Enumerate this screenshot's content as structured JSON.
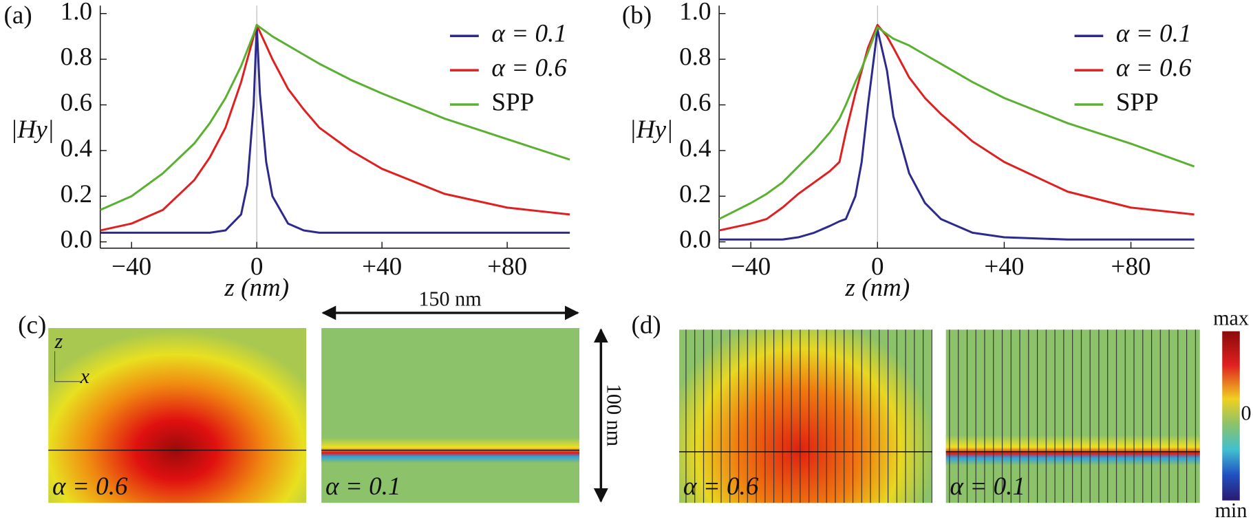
{
  "chart_data": [
    {
      "type": "line",
      "panel": "(a)",
      "ylabel": "|Hy|",
      "xlabel": "z (nm)",
      "x": [
        -50,
        -40,
        -30,
        -20,
        -15,
        -10,
        -5,
        -3,
        -1,
        0,
        1,
        3,
        5,
        10,
        15,
        20,
        30,
        40,
        60,
        80,
        100
      ],
      "series": [
        {
          "name": "α = 0.1",
          "color": "#2e2a8c",
          "values": [
            0.04,
            0.04,
            0.04,
            0.04,
            0.04,
            0.05,
            0.12,
            0.25,
            0.6,
            0.95,
            0.65,
            0.35,
            0.2,
            0.08,
            0.05,
            0.04,
            0.04,
            0.04,
            0.04,
            0.04,
            0.04
          ]
        },
        {
          "name": "α = 0.6",
          "color": "#e02020",
          "values": [
            0.05,
            0.08,
            0.14,
            0.27,
            0.37,
            0.5,
            0.7,
            0.8,
            0.9,
            0.95,
            0.92,
            0.86,
            0.8,
            0.67,
            0.58,
            0.5,
            0.4,
            0.32,
            0.21,
            0.15,
            0.12
          ]
        },
        {
          "name": "SPP",
          "color": "#5ab030",
          "values": [
            0.14,
            0.2,
            0.3,
            0.43,
            0.52,
            0.63,
            0.77,
            0.84,
            0.91,
            0.95,
            0.94,
            0.92,
            0.9,
            0.86,
            0.82,
            0.78,
            0.71,
            0.65,
            0.54,
            0.45,
            0.36
          ]
        }
      ],
      "xlim": [
        -50,
        100
      ],
      "ylim": [
        0,
        1
      ],
      "xticks": [
        {
          "value": -40,
          "label": "−40"
        },
        0,
        {
          "value": 40,
          "label": "+40"
        },
        {
          "value": 80,
          "label": "+80"
        }
      ],
      "yticks": [
        {
          "value": 0,
          "label": "0.0"
        },
        0.2,
        0.4,
        0.6,
        0.8,
        {
          "value": 1,
          "label": "1.0"
        }
      ]
    },
    {
      "type": "line",
      "panel": "(b)",
      "ylabel": "|Hy|",
      "xlabel": "z (nm)",
      "x": [
        -50,
        -40,
        -35,
        -30,
        -25,
        -20,
        -15,
        -12,
        -10,
        -7,
        -5,
        -3,
        0,
        3,
        5,
        10,
        15,
        20,
        30,
        40,
        60,
        80,
        100
      ],
      "series": [
        {
          "name": "α = 0.1",
          "color": "#2e2a8c",
          "values": [
            0.01,
            0.01,
            0.01,
            0.01,
            0.02,
            0.04,
            0.07,
            0.09,
            0.1,
            0.2,
            0.35,
            0.6,
            0.93,
            0.75,
            0.55,
            0.3,
            0.17,
            0.1,
            0.04,
            0.02,
            0.01,
            0.01,
            0.01
          ]
        },
        {
          "name": "α = 0.6",
          "color": "#e02020",
          "values": [
            0.05,
            0.08,
            0.1,
            0.15,
            0.21,
            0.26,
            0.31,
            0.35,
            0.48,
            0.65,
            0.75,
            0.85,
            0.95,
            0.9,
            0.85,
            0.72,
            0.63,
            0.56,
            0.44,
            0.35,
            0.22,
            0.15,
            0.12
          ]
        },
        {
          "name": "SPP",
          "color": "#5ab030",
          "values": [
            0.1,
            0.17,
            0.21,
            0.26,
            0.33,
            0.4,
            0.48,
            0.54,
            0.6,
            0.7,
            0.76,
            0.83,
            0.94,
            0.91,
            0.89,
            0.86,
            0.82,
            0.78,
            0.7,
            0.63,
            0.52,
            0.43,
            0.33
          ]
        }
      ],
      "xlim": [
        -50,
        100
      ],
      "ylim": [
        0,
        1
      ],
      "xticks": [
        {
          "value": -40,
          "label": "−40"
        },
        0,
        {
          "value": 40,
          "label": "+40"
        },
        {
          "value": 80,
          "label": "+80"
        }
      ],
      "yticks": [
        {
          "value": 0,
          "label": "0.0"
        },
        0.2,
        0.4,
        0.6,
        0.8,
        {
          "value": 1,
          "label": "1.0"
        }
      ]
    }
  ],
  "panels": {
    "c": {
      "label": "(c)",
      "width": "150 nm",
      "height": "100 nm",
      "axis_z": "z",
      "axis_x": "x",
      "maps": [
        "α = 0.6",
        "α = 0.1"
      ]
    },
    "d": {
      "label": "(d)",
      "maps": [
        "α = 0.6",
        "α = 0.1"
      ],
      "colorbar": [
        "max",
        "0",
        "min"
      ]
    }
  }
}
